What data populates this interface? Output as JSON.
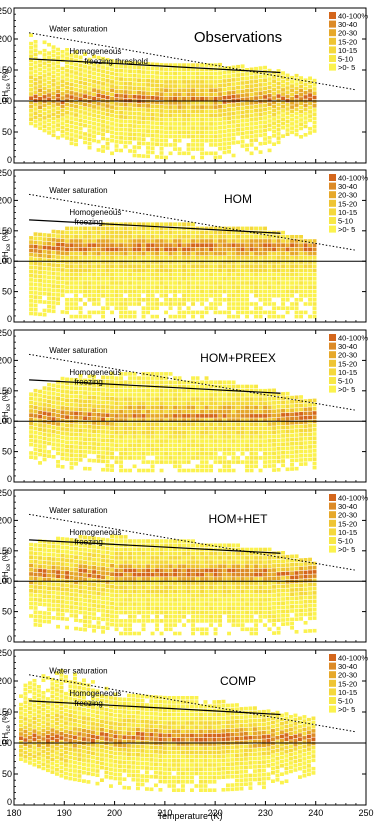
{
  "figure": {
    "xlabel": "Temperature (K)"
  },
  "legend": {
    "levels": [
      "40-100%",
      "30-40",
      "20-30",
      "15-20",
      "10-15",
      "5-10",
      ">0- 5"
    ],
    "colors": [
      "#d4661c",
      "#dc8a26",
      "#e6a82a",
      "#eec433",
      "#f4d83c",
      "#f8e845",
      "#fbf24e"
    ]
  },
  "chart_data": [
    {
      "type": "heatmap",
      "title": "Observations",
      "ylabel": "RH_ice (%)",
      "xlim": [
        180,
        250
      ],
      "ylim": [
        0,
        250
      ],
      "xticks": [
        180,
        190,
        200,
        210,
        220,
        230,
        240,
        250
      ],
      "yticks": [
        0,
        50,
        100,
        150,
        200,
        250
      ],
      "annotations": [
        "Water saturation",
        "Homogeneous",
        "freezing threshold"
      ],
      "water_saturation": {
        "x": [
          183,
          248
        ],
        "y": [
          210,
          118
        ]
      },
      "homogeneous_freezing": {
        "x": [
          183,
          233
        ],
        "y": [
          168,
          146
        ]
      },
      "reference_line_y": 100,
      "density_fields": {
        "x_range": [
          183,
          240
        ],
        "peak_y": 100,
        "upper_edge": [
          [
            183,
            205
          ],
          [
            190,
            180
          ],
          [
            200,
            160
          ],
          [
            210,
            155
          ],
          [
            220,
            155
          ],
          [
            230,
            150
          ],
          [
            240,
            130
          ]
        ],
        "lower_edge": [
          [
            183,
            60
          ],
          [
            190,
            30
          ],
          [
            200,
            10
          ],
          [
            210,
            5
          ],
          [
            220,
            5
          ],
          [
            230,
            15
          ],
          [
            240,
            50
          ]
        ]
      }
    },
    {
      "type": "heatmap",
      "title": "HOM",
      "ylabel": "RH_ice (%)",
      "xlim": [
        180,
        250
      ],
      "ylim": [
        0,
        250
      ],
      "xticks": [
        180,
        190,
        200,
        210,
        220,
        230,
        240,
        250
      ],
      "yticks": [
        0,
        50,
        100,
        150,
        200,
        250
      ],
      "annotations": [
        "Water saturation",
        "Homogeneous",
        "freezing"
      ],
      "water_saturation": {
        "x": [
          183,
          248
        ],
        "y": [
          210,
          118
        ]
      },
      "homogeneous_freezing": {
        "x": [
          183,
          233
        ],
        "y": [
          168,
          146
        ]
      },
      "reference_line_y": 100,
      "density_fields": {
        "x_range": [
          183,
          240
        ],
        "peak_y": 118,
        "upper_edge": [
          [
            183,
            140
          ],
          [
            190,
            150
          ],
          [
            200,
            160
          ],
          [
            210,
            160
          ],
          [
            220,
            155
          ],
          [
            230,
            150
          ],
          [
            240,
            130
          ]
        ],
        "lower_edge": [
          [
            183,
            10
          ],
          [
            190,
            5
          ],
          [
            200,
            5
          ],
          [
            210,
            5
          ],
          [
            220,
            5
          ],
          [
            230,
            5
          ],
          [
            240,
            5
          ]
        ]
      }
    },
    {
      "type": "heatmap",
      "title": "HOM+PREEX",
      "ylabel": "RH_ice (%)",
      "xlim": [
        180,
        250
      ],
      "ylim": [
        0,
        250
      ],
      "xticks": [
        180,
        190,
        200,
        210,
        220,
        230,
        240,
        250
      ],
      "yticks": [
        0,
        50,
        100,
        150,
        200,
        250
      ],
      "annotations": [
        "Water saturation",
        "Homogeneous",
        "freezing"
      ],
      "water_saturation": {
        "x": [
          183,
          248
        ],
        "y": [
          210,
          118
        ]
      },
      "homogeneous_freezing": {
        "x": [
          183,
          233
        ],
        "y": [
          168,
          146
        ]
      },
      "reference_line_y": 100,
      "density_fields": {
        "x_range": [
          183,
          240
        ],
        "peak_y": 105,
        "upper_edge": [
          [
            183,
            145
          ],
          [
            190,
            170
          ],
          [
            200,
            175
          ],
          [
            210,
            175
          ],
          [
            220,
            165
          ],
          [
            230,
            150
          ],
          [
            240,
            130
          ]
        ],
        "lower_edge": [
          [
            183,
            30
          ],
          [
            190,
            20
          ],
          [
            200,
            15
          ],
          [
            210,
            15
          ],
          [
            220,
            15
          ],
          [
            230,
            15
          ],
          [
            240,
            20
          ]
        ]
      }
    },
    {
      "type": "heatmap",
      "title": "HOM+HET",
      "ylabel": "RH_ice (%)",
      "xlim": [
        180,
        250
      ],
      "ylim": [
        0,
        250
      ],
      "xticks": [
        180,
        190,
        200,
        210,
        220,
        230,
        240,
        250
      ],
      "yticks": [
        0,
        50,
        100,
        150,
        200,
        250
      ],
      "annotations": [
        "Water saturation",
        "Homogeneous",
        "freezing"
      ],
      "water_saturation": {
        "x": [
          183,
          248
        ],
        "y": [
          210,
          118
        ]
      },
      "homogeneous_freezing": {
        "x": [
          183,
          233
        ],
        "y": [
          168,
          146
        ]
      },
      "reference_line_y": 100,
      "density_fields": {
        "x_range": [
          183,
          240
        ],
        "peak_y": 108,
        "upper_edge": [
          [
            183,
            160
          ],
          [
            190,
            170
          ],
          [
            200,
            170
          ],
          [
            210,
            165
          ],
          [
            220,
            160
          ],
          [
            230,
            150
          ],
          [
            240,
            130
          ]
        ],
        "lower_edge": [
          [
            183,
            25
          ],
          [
            190,
            20
          ],
          [
            200,
            10
          ],
          [
            210,
            10
          ],
          [
            220,
            10
          ],
          [
            230,
            10
          ],
          [
            240,
            15
          ]
        ]
      }
    },
    {
      "type": "heatmap",
      "title": "COMP",
      "ylabel": "RH_ice (%)",
      "xlim": [
        180,
        250
      ],
      "ylim": [
        0,
        250
      ],
      "xticks": [
        180,
        190,
        200,
        210,
        220,
        230,
        240,
        250
      ],
      "yticks": [
        0,
        50,
        100,
        150,
        200,
        250
      ],
      "annotations": [
        "Water saturation",
        "Homogeneous",
        "freezing"
      ],
      "water_saturation": {
        "x": [
          183,
          248
        ],
        "y": [
          210,
          118
        ]
      },
      "homogeneous_freezing": {
        "x": [
          183,
          233
        ],
        "y": [
          168,
          146
        ]
      },
      "reference_line_y": 100,
      "density_fields": {
        "x_range": [
          181,
          240
        ],
        "peak_y": 105,
        "upper_edge": [
          [
            181,
            195
          ],
          [
            190,
            215
          ],
          [
            200,
            180
          ],
          [
            210,
            175
          ],
          [
            220,
            165
          ],
          [
            230,
            150
          ],
          [
            240,
            135
          ]
        ],
        "lower_edge": [
          [
            181,
            70
          ],
          [
            190,
            40
          ],
          [
            200,
            25
          ],
          [
            210,
            20
          ],
          [
            220,
            20
          ],
          [
            230,
            25
          ],
          [
            240,
            50
          ]
        ]
      }
    }
  ]
}
